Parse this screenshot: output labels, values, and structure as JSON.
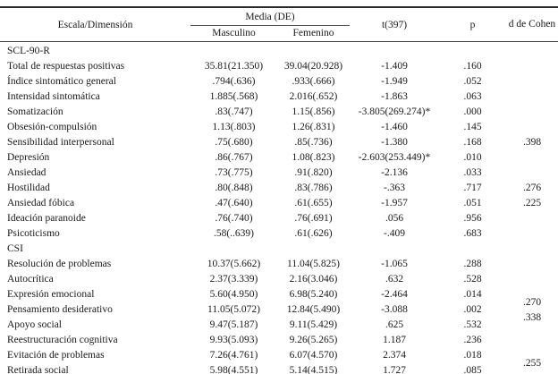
{
  "colors": {
    "text": "#1a1a1a",
    "border": "#2b2b2b",
    "background": "#ffffff"
  },
  "table": {
    "header": {
      "scale": "Escala/Dimensión",
      "media_group": "Media (DE)",
      "masculino": "Masculino",
      "femenino": "Femenino",
      "t": "t(397)",
      "p": "p",
      "d": "d de Cohen"
    },
    "sections": [
      {
        "label": "SCL-90-R",
        "rows": [
          {
            "label": "Total de respuestas positivas",
            "masculino": "35.81(21.350)",
            "femenino": "39.04(20.928)",
            "t": "-1.409",
            "p": ".160",
            "d": ""
          },
          {
            "label": "Índice sintomático general",
            "masculino": ".794(.636)",
            "femenino": ".933(.666)",
            "t": "-1.949",
            "p": ".052",
            "d": ""
          },
          {
            "label": "Intensidad sintomática",
            "masculino": "1.885(.568)",
            "femenino": "2.016(.652)",
            "t": "-1.863",
            "p": ".063",
            "d": ""
          },
          {
            "label": "Somatización",
            "masculino": ".83(.747)",
            "femenino": "1.15(.856)",
            "t": "-3.805(269.274)*",
            "p": ".000",
            "d": ""
          },
          {
            "label": "Obsesión-compulsión",
            "masculino": "1.13(.803)",
            "femenino": "1.26(.831)",
            "t": "-1.460",
            "p": ".145",
            "d": ""
          },
          {
            "label": "Sensibilidad interpersonal",
            "masculino": ".75(.680)",
            "femenino": ".85(.736)",
            "t": "-1.380",
            "p": ".168",
            "d": ".398"
          },
          {
            "label": "Depresión",
            "masculino": ".86(.767)",
            "femenino": "1.08(.823)",
            "t": "-2.603(253.449)*",
            "p": ".010",
            "d": ""
          },
          {
            "label": "Ansiedad",
            "masculino": ".73(.775)",
            "femenino": ".91(.820)",
            "t": "-2.136",
            "p": ".033",
            "d": ""
          },
          {
            "label": "Hostilidad",
            "masculino": ".80(.848)",
            "femenino": ".83(.786)",
            "t": "-.363",
            "p": ".717",
            "d": ".276"
          },
          {
            "label": "Ansiedad fóbica",
            "masculino": ".47(.640)",
            "femenino": ".61(.655)",
            "t": "-1.957",
            "p": ".051",
            "d": ".225"
          },
          {
            "label": "Ideación paranoide",
            "masculino": ".76(.740)",
            "femenino": ".76(.691)",
            "t": ".056",
            "p": ".956",
            "d": ""
          },
          {
            "label": "Psicoticismo",
            "masculino": ".58(..639)",
            "femenino": ".61(.626)",
            "t": "-.409",
            "p": ".683",
            "d": ""
          }
        ]
      },
      {
        "label": "CSI",
        "rows": [
          {
            "label": "Resolución de problemas",
            "masculino": "10.37(5.662)",
            "femenino": "11.04(5.825)",
            "t": "-1.065",
            "p": ".288",
            "d": ""
          },
          {
            "label": "Autocrítica",
            "masculino": "2.37(3.339)",
            "femenino": "2.16(3.046)",
            "t": ".632",
            "p": ".528",
            "d": ""
          },
          {
            "label": "Expresión emocional",
            "masculino": "5.60(4.950)",
            "femenino": "6.98(5.240)",
            "t": "-2.464",
            "p": ".014",
            "d": ".270",
            "d_straddle": true
          },
          {
            "label": "Pensamiento desiderativo",
            "masculino": "11.05(5.072)",
            "femenino": "12.84(5.490)",
            "t": "-3.088",
            "p": ".002",
            "d": ".338",
            "d_straddle": true
          },
          {
            "label": "Apoyo social",
            "masculino": "9.47(5.187)",
            "femenino": "9.11(5.429)",
            "t": ".625",
            "p": ".532",
            "d": ""
          },
          {
            "label": "Reestructuración cognitiva",
            "masculino": "9.93(5.093)",
            "femenino": "9.26(5.265)",
            "t": "1.187",
            "p": ".236",
            "d": ""
          },
          {
            "label": "Evitación de problemas",
            "masculino": "7.26(4.761)",
            "femenino": "6.07(4.570)",
            "t": "2.374",
            "p": ".018",
            "d": ".255",
            "d_straddle": true
          },
          {
            "label": "Retirada social",
            "masculino": "5.98(4.551)",
            "femenino": "5.14(4.515)",
            "t": "1.727",
            "p": ".085",
            "d": ""
          }
        ]
      }
    ]
  }
}
